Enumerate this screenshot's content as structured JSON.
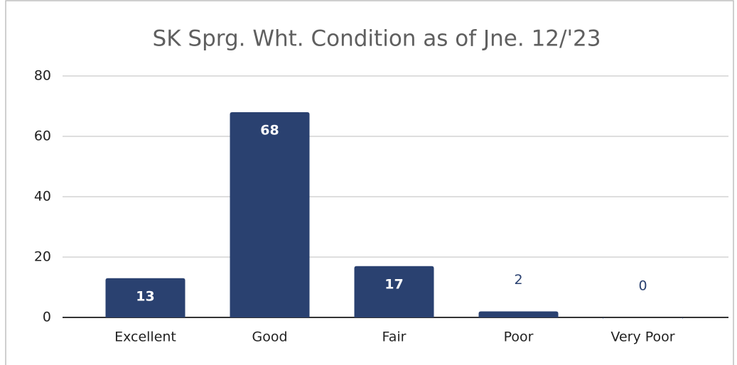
{
  "chart_data": {
    "type": "bar",
    "title": "SK Sprg. Wht. Condition as of Jne. 12/'23",
    "categories": [
      "Excellent",
      "Good",
      "Fair",
      "Poor",
      "Very Poor"
    ],
    "values": [
      13,
      68,
      17,
      2,
      0
    ],
    "color": "#2a4170",
    "ylim": [
      0,
      80
    ],
    "yticks": [
      0,
      20,
      40,
      60,
      80
    ],
    "grid": true
  }
}
